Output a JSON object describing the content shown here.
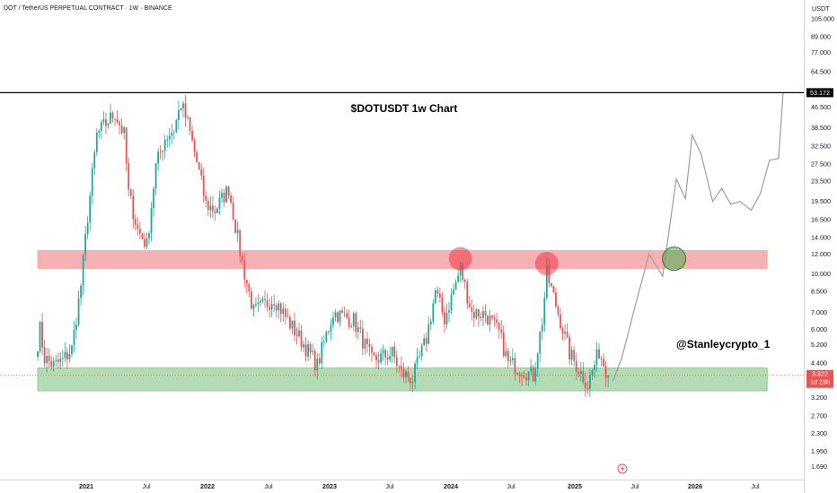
{
  "header": {
    "title": "DOT / TetherUS PERPETUAL CONTRACT · 1W · BINANCE"
  },
  "annotations": {
    "chart_title": "$DOTUSDT 1w Chart",
    "author": "@Stanleycrypto_1"
  },
  "price_axis": {
    "unit": "USDT",
    "ticks": [
      "105.000",
      "89.000",
      "77.000",
      "64.500",
      "53.172",
      "46.500",
      "38.500",
      "32.500",
      "27.500",
      "23.500",
      "19.500",
      "16.500",
      "14.000",
      "12.000",
      "10.000",
      "8.500",
      "7.000",
      "6.000",
      "5.200",
      "4.400",
      "3.922",
      "3.200",
      "2.700",
      "2.300",
      "1.950",
      "1.690"
    ],
    "current_price": "3.922",
    "countdown": "1d 23h",
    "ath_label": "53.172"
  },
  "time_axis": {
    "ticks": [
      {
        "label": "2021",
        "bold": true
      },
      {
        "label": "Jul",
        "bold": false
      },
      {
        "label": "2022",
        "bold": true
      },
      {
        "label": "Jul",
        "bold": false
      },
      {
        "label": "2023",
        "bold": true
      },
      {
        "label": "Jul",
        "bold": false
      },
      {
        "label": "2024",
        "bold": true
      },
      {
        "label": "Jul",
        "bold": false
      },
      {
        "label": "2025",
        "bold": true
      },
      {
        "label": "Jul",
        "bold": false
      },
      {
        "label": "2026",
        "bold": true
      },
      {
        "label": "Jul",
        "bold": false
      }
    ]
  },
  "colors": {
    "up": "#26a69a",
    "down": "#ef5350",
    "resistance_zone": "#f4a3a8",
    "support_zone": "#a5d6a7",
    "projection": "#9e9e9e",
    "rejection_marker": "#f23645",
    "breakout_marker": "#4caf50"
  },
  "chart_data": {
    "type": "candlestick",
    "title": "$DOTUSDT 1w Chart",
    "symbol": "DOT / TetherUS PERPETUAL CONTRACT",
    "interval": "1W",
    "exchange": "BINANCE",
    "y_scale": "log",
    "ylim": [
      1.5,
      125
    ],
    "xlim": [
      "2020-08-17",
      "2026-11-30"
    ],
    "ath_level": 53.172,
    "zones": [
      {
        "kind": "resistance",
        "low": 10.5,
        "high": 12.4,
        "from": "2020-08-17",
        "to": "2026-10-12"
      },
      {
        "kind": "support",
        "low": 3.4,
        "high": 4.2,
        "from": "2020-08-17",
        "to": "2026-10-12"
      }
    ],
    "markers": [
      {
        "kind": "rejection",
        "date": "2024-03-11",
        "price": 11.5
      },
      {
        "kind": "rejection",
        "date": "2024-12-02",
        "price": 11.0
      },
      {
        "kind": "breakout",
        "date": "2025-12-29",
        "price": 11.5
      }
    ],
    "weekly_closes": [
      {
        "date": "2020-08-17",
        "close": 5.3
      },
      {
        "date": "2020-08-24",
        "close": 6.0
      },
      {
        "date": "2020-09-07",
        "close": 4.6
      },
      {
        "date": "2020-10-05",
        "close": 4.3
      },
      {
        "date": "2020-11-02",
        "close": 4.5
      },
      {
        "date": "2020-11-30",
        "close": 5.0
      },
      {
        "date": "2020-12-28",
        "close": 9.0
      },
      {
        "date": "2021-01-18",
        "close": 17.0
      },
      {
        "date": "2021-02-15",
        "close": 36.0
      },
      {
        "date": "2021-03-15",
        "close": 40.0
      },
      {
        "date": "2021-04-12",
        "close": 44.0
      },
      {
        "date": "2021-05-10",
        "close": 36.0
      },
      {
        "date": "2021-05-24",
        "close": 21.0
      },
      {
        "date": "2021-06-21",
        "close": 15.0
      },
      {
        "date": "2021-07-19",
        "close": 13.0
      },
      {
        "date": "2021-08-16",
        "close": 27.0
      },
      {
        "date": "2021-09-13",
        "close": 35.0
      },
      {
        "date": "2021-10-11",
        "close": 38.0
      },
      {
        "date": "2021-11-01",
        "close": 48.0
      },
      {
        "date": "2021-11-22",
        "close": 40.0
      },
      {
        "date": "2021-12-20",
        "close": 28.0
      },
      {
        "date": "2022-01-17",
        "close": 19.0
      },
      {
        "date": "2022-02-14",
        "close": 18.0
      },
      {
        "date": "2022-03-28",
        "close": 22.0
      },
      {
        "date": "2022-05-09",
        "close": 11.0
      },
      {
        "date": "2022-06-13",
        "close": 7.0
      },
      {
        "date": "2022-08-15",
        "close": 8.0
      },
      {
        "date": "2022-10-03",
        "close": 6.3
      },
      {
        "date": "2022-11-07",
        "close": 5.4
      },
      {
        "date": "2022-12-26",
        "close": 4.3
      },
      {
        "date": "2023-02-13",
        "close": 7.0
      },
      {
        "date": "2023-04-17",
        "close": 6.5
      },
      {
        "date": "2023-06-12",
        "close": 4.5
      },
      {
        "date": "2023-08-14",
        "close": 4.8
      },
      {
        "date": "2023-09-11",
        "close": 4.0
      },
      {
        "date": "2023-10-16",
        "close": 3.8
      },
      {
        "date": "2023-11-27",
        "close": 5.5
      },
      {
        "date": "2023-12-25",
        "close": 8.5
      },
      {
        "date": "2024-01-22",
        "close": 6.6
      },
      {
        "date": "2024-03-11",
        "close": 10.5
      },
      {
        "date": "2024-04-15",
        "close": 7.0
      },
      {
        "date": "2024-05-27",
        "close": 6.9
      },
      {
        "date": "2024-07-08",
        "close": 5.8
      },
      {
        "date": "2024-08-05",
        "close": 4.4
      },
      {
        "date": "2024-09-09",
        "close": 4.2
      },
      {
        "date": "2024-10-21",
        "close": 3.9
      },
      {
        "date": "2024-11-18",
        "close": 6.5
      },
      {
        "date": "2024-12-02",
        "close": 10.0
      },
      {
        "date": "2025-01-13",
        "close": 6.5
      },
      {
        "date": "2025-02-10",
        "close": 4.8
      },
      {
        "date": "2025-04-07",
        "close": 3.6
      },
      {
        "date": "2025-05-12",
        "close": 4.9
      },
      {
        "date": "2025-06-09",
        "close": 3.922
      }
    ],
    "projection": [
      {
        "date": "2025-06-23",
        "price": 3.7
      },
      {
        "date": "2025-07-21",
        "price": 4.6
      },
      {
        "date": "2025-09-01",
        "price": 7.5
      },
      {
        "date": "2025-10-13",
        "price": 12.0
      },
      {
        "date": "2025-11-24",
        "price": 9.8
      },
      {
        "date": "2026-01-05",
        "price": 24.0
      },
      {
        "date": "2026-02-02",
        "price": 20.0
      },
      {
        "date": "2026-02-23",
        "price": 36.0
      },
      {
        "date": "2026-03-23",
        "price": 30.0
      },
      {
        "date": "2026-04-27",
        "price": 19.5
      },
      {
        "date": "2026-05-25",
        "price": 22.0
      },
      {
        "date": "2026-06-22",
        "price": 19.0
      },
      {
        "date": "2026-07-20",
        "price": 19.5
      },
      {
        "date": "2026-08-24",
        "price": 18.0
      },
      {
        "date": "2026-09-21",
        "price": 21.0
      },
      {
        "date": "2026-10-19",
        "price": 28.5
      },
      {
        "date": "2026-11-16",
        "price": 29.0
      },
      {
        "date": "2026-11-30",
        "price": 53.0
      }
    ]
  }
}
